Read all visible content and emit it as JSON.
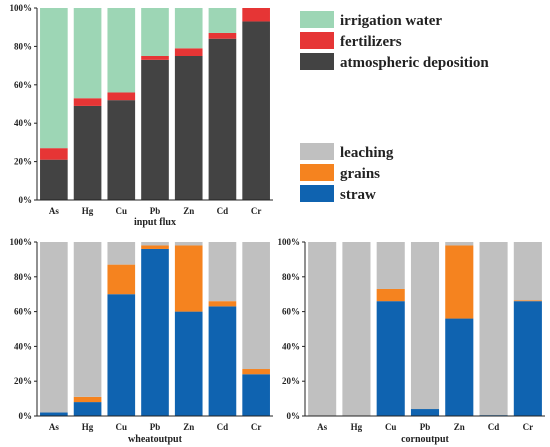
{
  "legend_input": [
    {
      "label": "irrigation water",
      "color": "#9dd6b5"
    },
    {
      "label": "fertilizers",
      "color": "#e63535"
    },
    {
      "label": "atmospheric deposition",
      "color": "#434343"
    }
  ],
  "legend_output": [
    {
      "label": "leaching",
      "color": "#c0c0c0"
    },
    {
      "label": "grains",
      "color": "#f5831f"
    },
    {
      "label": "straw",
      "color": "#0f63b0"
    }
  ],
  "chart_data": [
    {
      "type": "bar",
      "stacked": true,
      "title": "",
      "xlabel": "input flux",
      "ylabel": "",
      "ylim": [
        0,
        100
      ],
      "yticks": [
        "0%",
        "20%",
        "40%",
        "60%",
        "80%",
        "100%"
      ],
      "categories": [
        "As",
        "Hg",
        "Cu",
        "Pb",
        "Zn",
        "Cd",
        "Cr"
      ],
      "series": [
        {
          "name": "atmospheric deposition",
          "color": "#434343",
          "values": [
            21,
            49,
            52,
            73,
            75,
            84,
            93
          ]
        },
        {
          "name": "fertilizers",
          "color": "#e63535",
          "values": [
            6,
            4,
            4,
            2,
            4,
            3,
            7
          ]
        },
        {
          "name": "irrigation water",
          "color": "#9dd6b5",
          "values": [
            73,
            47,
            44,
            25,
            21,
            13,
            0
          ]
        }
      ]
    },
    {
      "type": "bar",
      "stacked": true,
      "title": "",
      "xlabel": "wheatoutput",
      "ylabel": "",
      "ylim": [
        0,
        100
      ],
      "yticks": [
        "0%",
        "20%",
        "40%",
        "60%",
        "80%",
        "100%"
      ],
      "categories": [
        "As",
        "Hg",
        "Cu",
        "Pb",
        "Zn",
        "Cd",
        "Cr"
      ],
      "series": [
        {
          "name": "straw",
          "color": "#0f63b0",
          "values": [
            2,
            8,
            70,
            96,
            60,
            63,
            24
          ]
        },
        {
          "name": "grains",
          "color": "#f5831f",
          "values": [
            0,
            3,
            17,
            2,
            38,
            3,
            3
          ]
        },
        {
          "name": "leaching",
          "color": "#c0c0c0",
          "values": [
            98,
            89,
            13,
            2,
            2,
            34,
            73
          ]
        }
      ]
    },
    {
      "type": "bar",
      "stacked": true,
      "title": "",
      "xlabel": "cornoutput",
      "ylabel": "",
      "ylim": [
        0,
        100
      ],
      "yticks": [
        "0%",
        "20%",
        "40%",
        "60%",
        "80%",
        "100%"
      ],
      "categories": [
        "As",
        "Hg",
        "Cu",
        "Pb",
        "Zn",
        "Cd",
        "Cr"
      ],
      "series": [
        {
          "name": "straw",
          "color": "#0f63b0",
          "values": [
            0,
            0,
            66,
            4,
            56,
            0.5,
            66
          ]
        },
        {
          "name": "grains",
          "color": "#f5831f",
          "values": [
            0,
            0,
            7,
            0,
            42,
            0,
            0.5
          ]
        },
        {
          "name": "leaching",
          "color": "#c0c0c0",
          "values": [
            100,
            100,
            27,
            96,
            2,
            99.5,
            33.5
          ]
        }
      ]
    }
  ]
}
